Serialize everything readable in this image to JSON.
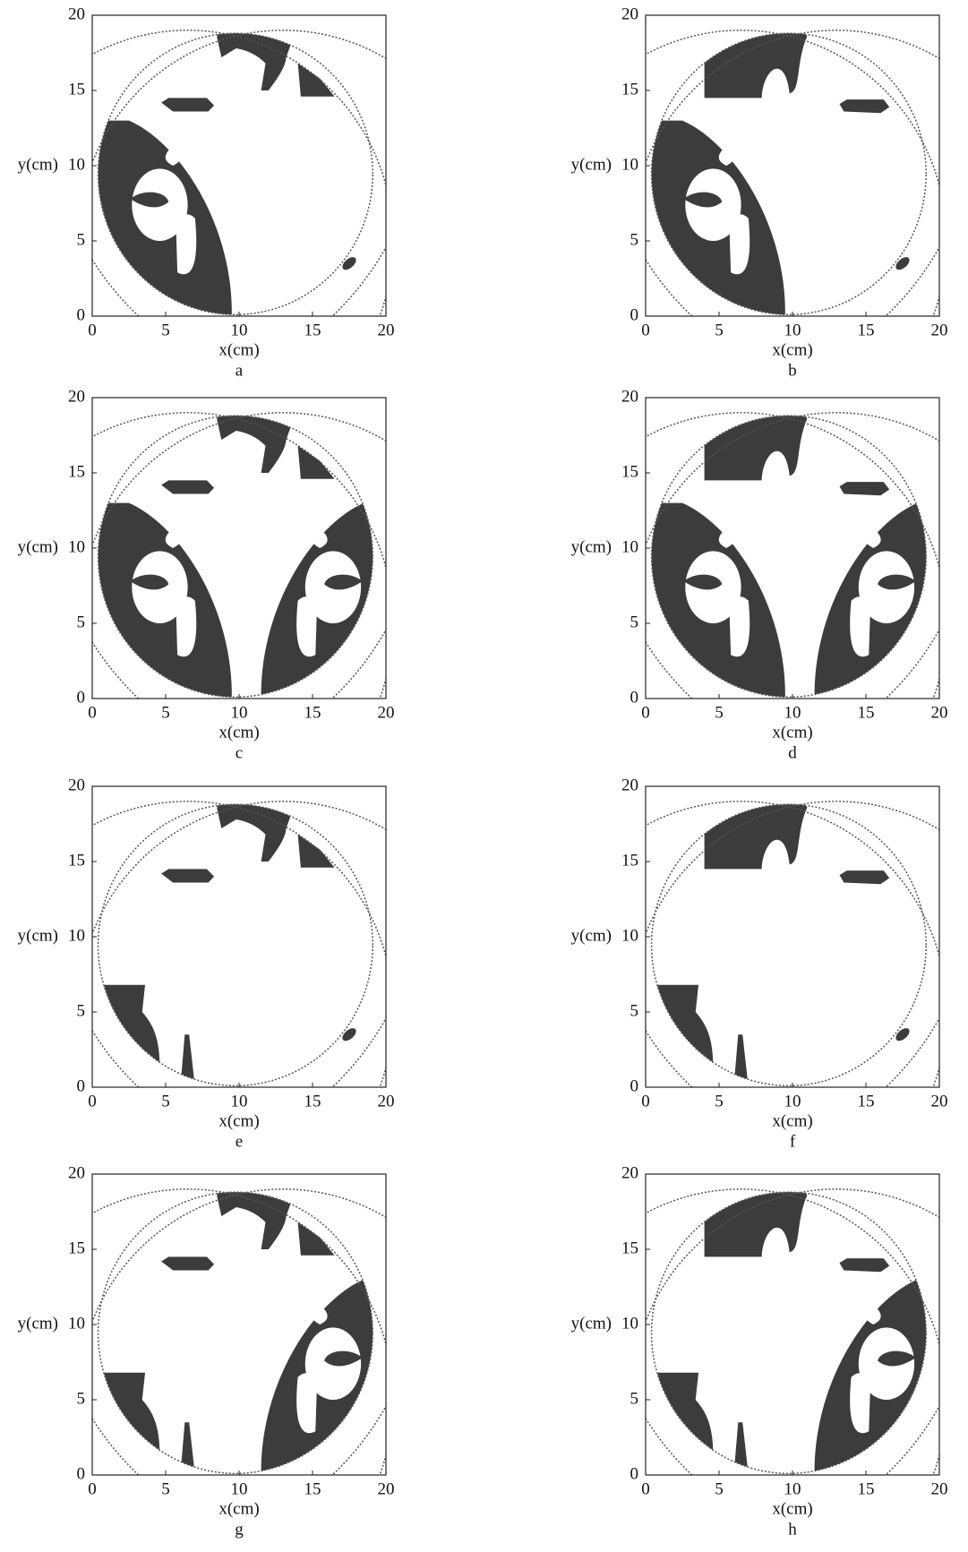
{
  "panels": [
    {
      "label": "a",
      "x_label": "x(cm)",
      "y_label": "y(cm)",
      "xlim": [
        0,
        20
      ],
      "ylim": [
        0,
        20
      ],
      "xticks": [
        0,
        5,
        10,
        15,
        20
      ],
      "yticks": [
        0,
        5,
        10,
        15,
        20
      ]
    },
    {
      "label": "b",
      "x_label": "x(cm)",
      "y_label": "y(cm)",
      "xlim": [
        0,
        20
      ],
      "ylim": [
        0,
        20
      ],
      "xticks": [
        0,
        5,
        10,
        15,
        20
      ],
      "yticks": [
        0,
        5,
        10,
        15,
        20
      ]
    },
    {
      "label": "c",
      "x_label": "x(cm)",
      "y_label": "y(cm)",
      "xlim": [
        0,
        20
      ],
      "ylim": [
        0,
        20
      ],
      "xticks": [
        0,
        5,
        10,
        15,
        20
      ],
      "yticks": [
        0,
        5,
        10,
        15,
        20
      ]
    },
    {
      "label": "d",
      "x_label": "x(cm)",
      "y_label": "y(cm)",
      "xlim": [
        0,
        20
      ],
      "ylim": [
        0,
        20
      ],
      "xticks": [
        0,
        5,
        10,
        15,
        20
      ],
      "yticks": [
        0,
        5,
        10,
        15,
        20
      ]
    },
    {
      "label": "e",
      "x_label": "x(cm)",
      "y_label": "y(cm)",
      "xlim": [
        0,
        20
      ],
      "ylim": [
        0,
        20
      ],
      "xticks": [
        0,
        5,
        10,
        15,
        20
      ],
      "yticks": [
        0,
        5,
        10,
        15,
        20
      ]
    },
    {
      "label": "f",
      "x_label": "x(cm)",
      "y_label": "y(cm)",
      "xlim": [
        0,
        20
      ],
      "ylim": [
        0,
        20
      ],
      "xticks": [
        0,
        5,
        10,
        15,
        20
      ],
      "yticks": [
        0,
        5,
        10,
        15,
        20
      ]
    },
    {
      "label": "g",
      "x_label": "x(cm)",
      "y_label": "y(cm)",
      "xlim": [
        0,
        20
      ],
      "ylim": [
        0,
        20
      ],
      "xticks": [
        0,
        5,
        10,
        15,
        20
      ],
      "yticks": [
        0,
        5,
        10,
        15,
        20
      ]
    },
    {
      "label": "h",
      "x_label": "x(cm)",
      "y_label": "y(cm)",
      "xlim": [
        0,
        20
      ],
      "ylim": [
        0,
        20
      ],
      "xticks": [
        0,
        5,
        10,
        15,
        20
      ],
      "yticks": [
        0,
        5,
        10,
        15,
        20
      ]
    }
  ]
}
